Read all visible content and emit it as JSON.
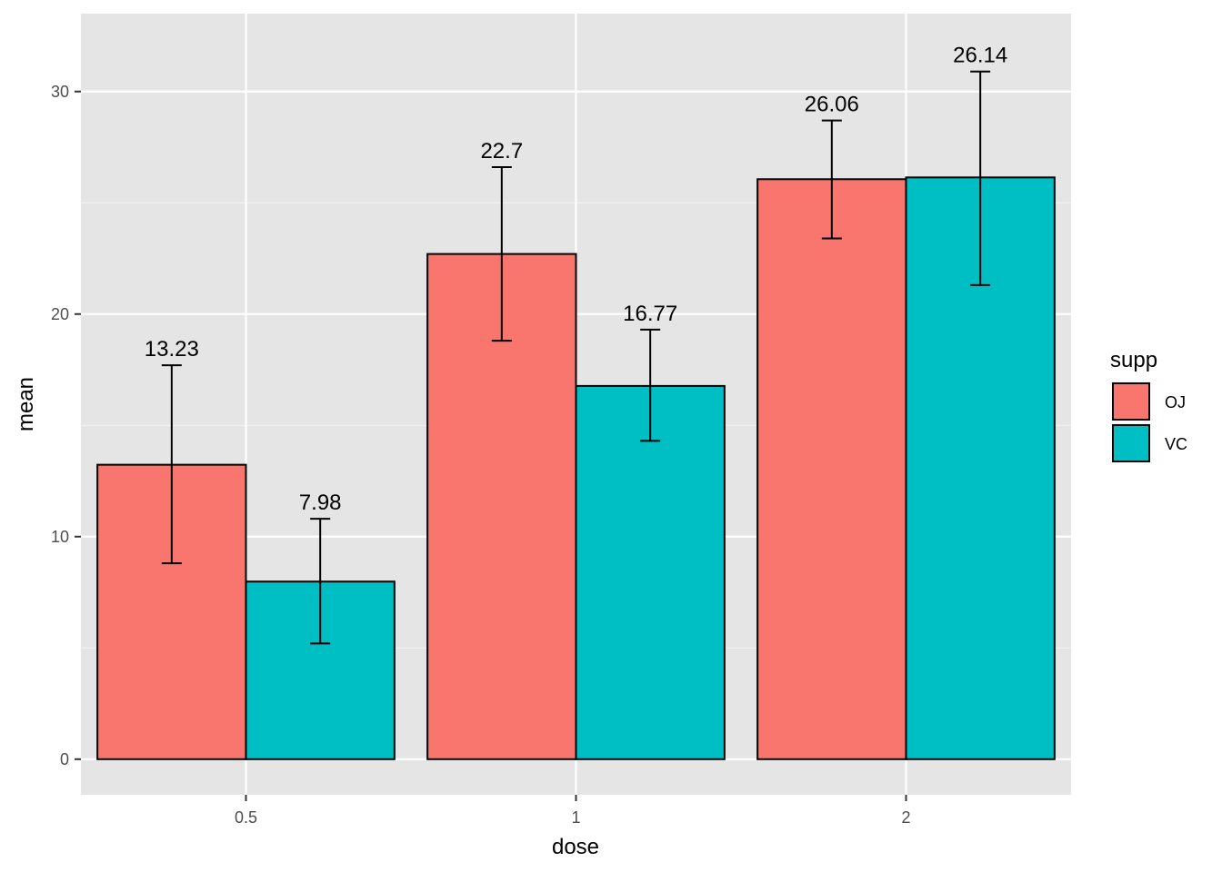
{
  "chart_data": {
    "type": "bar",
    "categories": [
      "0.5",
      "1",
      "2"
    ],
    "series": [
      {
        "name": "OJ",
        "color": "#f8766d",
        "values": [
          13.23,
          22.7,
          26.06
        ],
        "error_low": [
          8.8,
          18.8,
          23.4
        ],
        "error_high": [
          17.7,
          26.6,
          28.7
        ],
        "labels": [
          "13.23",
          "22.7",
          "26.06"
        ]
      },
      {
        "name": "VC",
        "color": "#00bfc4",
        "values": [
          7.98,
          16.77,
          26.14
        ],
        "error_low": [
          5.2,
          14.3,
          21.3
        ],
        "error_high": [
          10.8,
          19.3,
          30.9
        ],
        "labels": [
          "7.98",
          "16.77",
          "26.14"
        ]
      }
    ],
    "xlabel": "dose",
    "ylabel": "mean",
    "yticks": [
      0,
      10,
      20,
      30
    ],
    "ylim": [
      -1.6,
      33.5
    ],
    "legend_title": "supp",
    "legend_position": "right",
    "grid": true,
    "panel_background": "#e5e5e5"
  }
}
